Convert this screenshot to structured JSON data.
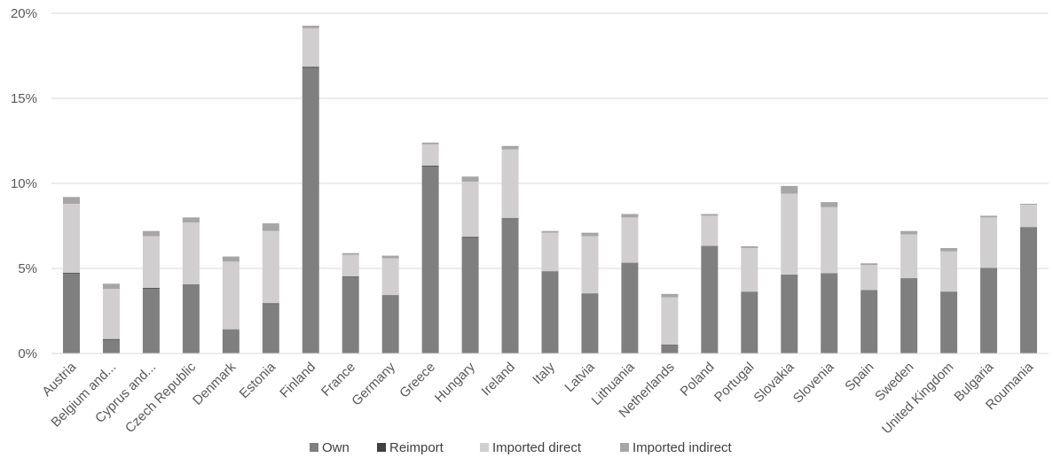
{
  "chart_data": {
    "type": "bar",
    "stacked": true,
    "title": "",
    "xlabel": "",
    "ylabel": "",
    "ylim": [
      0,
      0.2
    ],
    "yticks": [
      0,
      0.05,
      0.1,
      0.15,
      0.2
    ],
    "ytick_labels": [
      "0%",
      "5%",
      "10%",
      "15%",
      "20%"
    ],
    "grid": true,
    "legend_position": "bottom",
    "categories": [
      "Austria",
      "Belgium and...",
      "Cyprus and...",
      "Czech Republic",
      "Denmark",
      "Estonia",
      "Finland",
      "France",
      "Germany",
      "Greece",
      "Hungary",
      "Ireland",
      "Italy",
      "Latvia",
      "Lithuania",
      "Netherlands",
      "Poland",
      "Portugal",
      "Slovakia",
      "Slovenia",
      "Spain",
      "Sweden",
      "United Kingdom",
      "Bulgaria",
      "Roumania"
    ],
    "series": [
      {
        "name": "Own",
        "color": "#7f7f7f",
        "values": [
          0.047,
          0.008,
          0.038,
          0.04,
          0.014,
          0.029,
          0.168,
          0.045,
          0.034,
          0.11,
          0.068,
          0.079,
          0.048,
          0.035,
          0.053,
          0.005,
          0.063,
          0.036,
          0.046,
          0.047,
          0.037,
          0.044,
          0.036,
          0.05,
          0.074
        ]
      },
      {
        "name": "Reimport",
        "color": "#404040",
        "values": [
          0.0005,
          0.0005,
          0.0005,
          0.0005,
          0.0002,
          0.0005,
          0.0005,
          0.0003,
          0.0003,
          0.0005,
          0.0005,
          0.0005,
          0.0003,
          0.0003,
          0.0003,
          0.0002,
          0.0002,
          0.0002,
          0.0003,
          0.0002,
          0.0002,
          0.0002,
          0.0003,
          0.0002,
          0.0002
        ]
      },
      {
        "name": "Imported direct",
        "color": "#d0cece",
        "values": [
          0.0405,
          0.0295,
          0.0305,
          0.0365,
          0.0398,
          0.0425,
          0.0227,
          0.0127,
          0.0217,
          0.0125,
          0.0325,
          0.0405,
          0.0227,
          0.0337,
          0.0267,
          0.0278,
          0.0178,
          0.0258,
          0.0477,
          0.0388,
          0.0148,
          0.0258,
          0.0237,
          0.0298,
          0.0133
        ]
      },
      {
        "name": "Imported indirect",
        "color": "#a6a6a6",
        "values": [
          0.004,
          0.003,
          0.003,
          0.003,
          0.003,
          0.0045,
          0.0015,
          0.001,
          0.0015,
          0.001,
          0.003,
          0.002,
          0.001,
          0.002,
          0.002,
          0.002,
          0.001,
          0.001,
          0.0045,
          0.003,
          0.001,
          0.002,
          0.002,
          0.001,
          0.0005
        ]
      }
    ]
  }
}
